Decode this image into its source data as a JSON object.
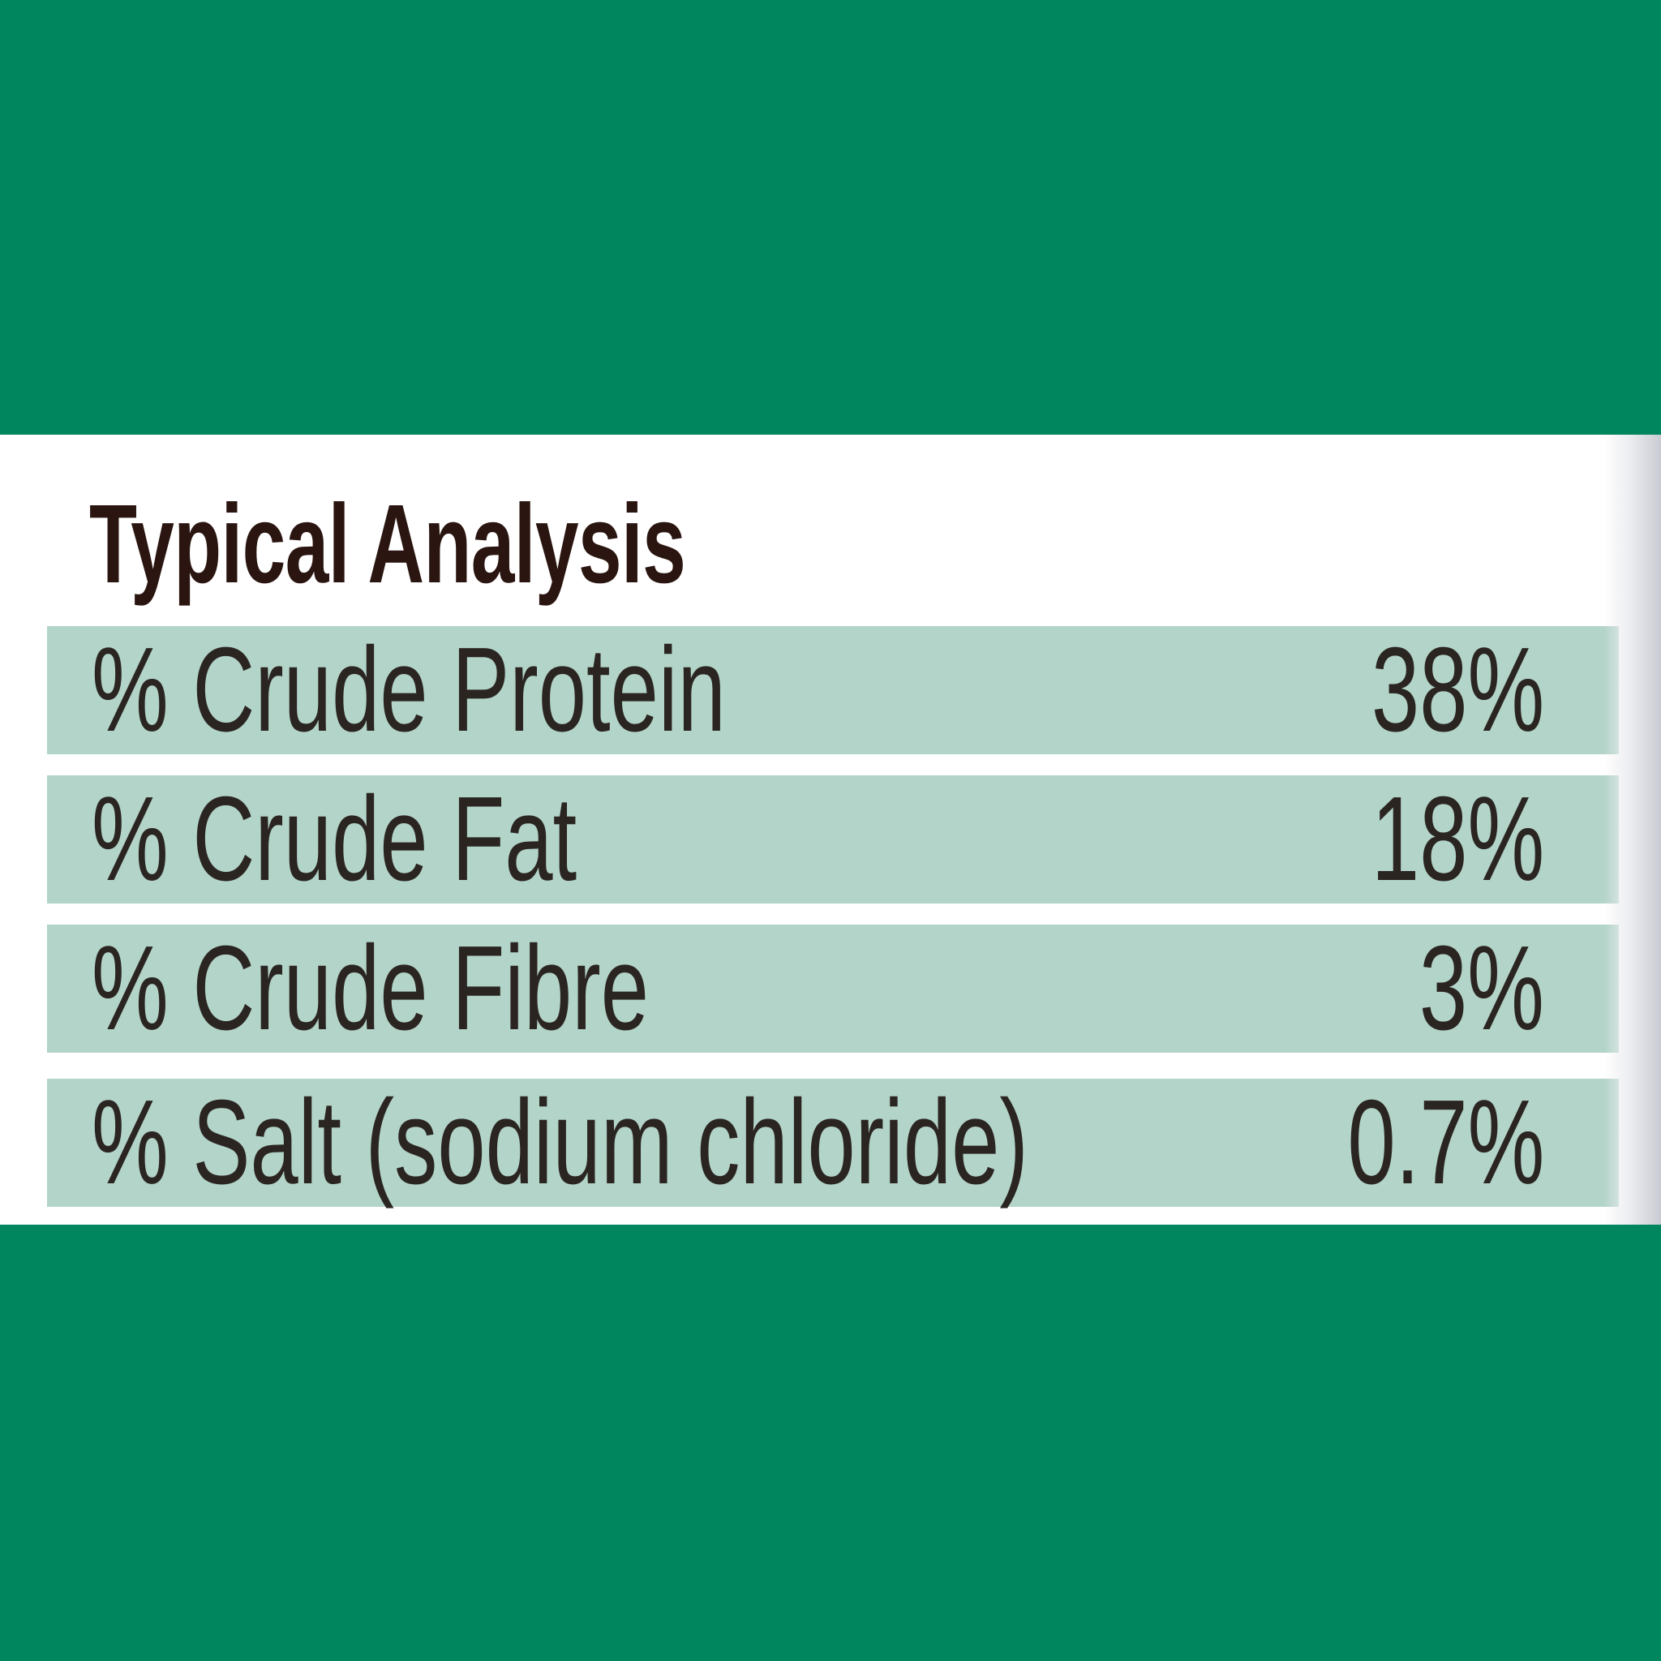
{
  "colors": {
    "background_green": "#00865e",
    "row_fill": "#b3d4c9",
    "panel": "#ffffff",
    "title_text": "#2a1510",
    "row_text": "#2b2522"
  },
  "analysis": {
    "title": "Typical Analysis",
    "rows": [
      {
        "label": "% Crude Protein",
        "value": "38%"
      },
      {
        "label": "% Crude Fat",
        "value": "18%"
      },
      {
        "label": "% Crude Fibre",
        "value": "3%"
      },
      {
        "label": "% Salt (sodium chloride)",
        "value": "0.7%"
      }
    ]
  }
}
